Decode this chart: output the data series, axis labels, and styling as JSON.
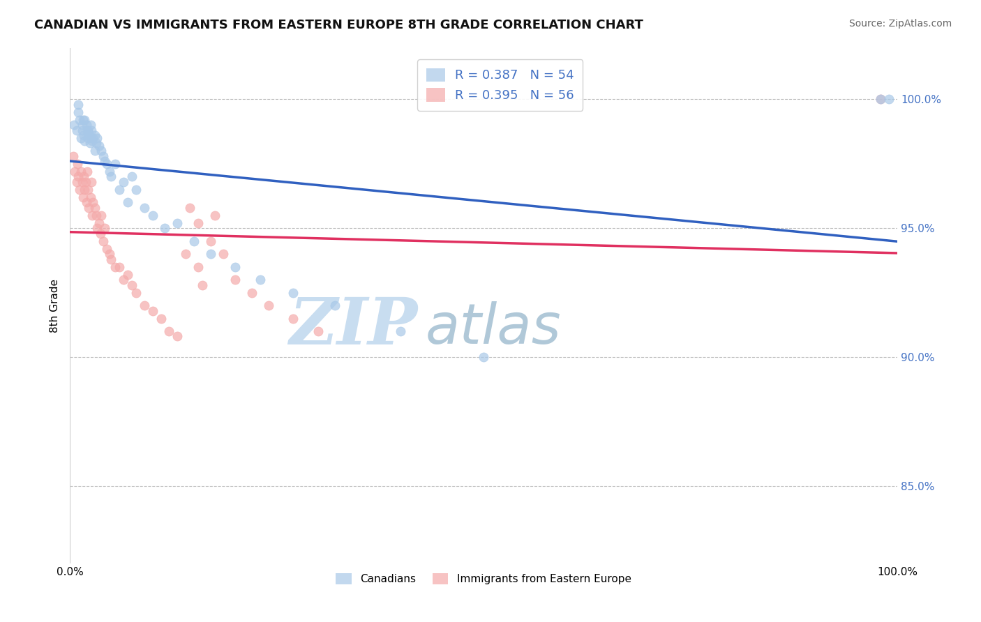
{
  "title": "CANADIAN VS IMMIGRANTS FROM EASTERN EUROPE 8TH GRADE CORRELATION CHART",
  "source_text": "Source: ZipAtlas.com",
  "ylabel": "8th Grade",
  "xlim": [
    0.0,
    1.0
  ],
  "ylim": [
    0.82,
    1.02
  ],
  "yticks": [
    0.85,
    0.9,
    0.95,
    1.0
  ],
  "ytick_labels": [
    "85.0%",
    "90.0%",
    "95.0%",
    "100.0%"
  ],
  "canadian_R": 0.387,
  "canadian_N": 54,
  "eastern_R": 0.395,
  "eastern_N": 56,
  "legend_labels": [
    "Canadians",
    "Immigrants from Eastern Europe"
  ],
  "blue_color": "#a8c8e8",
  "pink_color": "#f4aaaa",
  "blue_line_color": "#3060c0",
  "pink_line_color": "#e03060",
  "watermark_zip": "ZIP",
  "watermark_atlas": "atlas",
  "watermark_color_zip": "#c8ddf0",
  "watermark_color_atlas": "#b0c8d8",
  "background_color": "#ffffff",
  "canadian_x": [
    0.005,
    0.008,
    0.01,
    0.01,
    0.012,
    0.013,
    0.015,
    0.015,
    0.016,
    0.017,
    0.018,
    0.018,
    0.02,
    0.02,
    0.022,
    0.022,
    0.023,
    0.024,
    0.025,
    0.025,
    0.026,
    0.027,
    0.028,
    0.03,
    0.03,
    0.032,
    0.033,
    0.035,
    0.038,
    0.04,
    0.042,
    0.045,
    0.048,
    0.05,
    0.055,
    0.06,
    0.065,
    0.07,
    0.075,
    0.08,
    0.09,
    0.1,
    0.115,
    0.13,
    0.15,
    0.17,
    0.2,
    0.23,
    0.27,
    0.32,
    0.4,
    0.5,
    0.98,
    0.99
  ],
  "canadian_y": [
    0.99,
    0.988,
    0.995,
    0.998,
    0.992,
    0.985,
    0.99,
    0.988,
    0.992,
    0.986,
    0.984,
    0.992,
    0.99,
    0.988,
    0.988,
    0.985,
    0.987,
    0.983,
    0.99,
    0.985,
    0.988,
    0.984,
    0.985,
    0.986,
    0.98,
    0.983,
    0.985,
    0.982,
    0.98,
    0.978,
    0.976,
    0.975,
    0.972,
    0.97,
    0.975,
    0.965,
    0.968,
    0.96,
    0.97,
    0.965,
    0.958,
    0.955,
    0.95,
    0.952,
    0.945,
    0.94,
    0.935,
    0.93,
    0.925,
    0.92,
    0.91,
    0.9,
    1.0,
    1.0
  ],
  "eastern_x": [
    0.004,
    0.006,
    0.008,
    0.009,
    0.01,
    0.012,
    0.013,
    0.015,
    0.016,
    0.017,
    0.018,
    0.019,
    0.02,
    0.021,
    0.022,
    0.023,
    0.025,
    0.026,
    0.027,
    0.028,
    0.03,
    0.032,
    0.033,
    0.035,
    0.037,
    0.038,
    0.04,
    0.042,
    0.045,
    0.048,
    0.05,
    0.055,
    0.06,
    0.065,
    0.07,
    0.075,
    0.08,
    0.09,
    0.1,
    0.11,
    0.12,
    0.13,
    0.145,
    0.155,
    0.17,
    0.185,
    0.2,
    0.22,
    0.24,
    0.27,
    0.3,
    0.14,
    0.155,
    0.16,
    0.175,
    0.98
  ],
  "eastern_y": [
    0.978,
    0.972,
    0.968,
    0.975,
    0.97,
    0.965,
    0.972,
    0.968,
    0.962,
    0.97,
    0.965,
    0.968,
    0.96,
    0.972,
    0.965,
    0.958,
    0.962,
    0.968,
    0.955,
    0.96,
    0.958,
    0.955,
    0.95,
    0.952,
    0.948,
    0.955,
    0.945,
    0.95,
    0.942,
    0.94,
    0.938,
    0.935,
    0.935,
    0.93,
    0.932,
    0.928,
    0.925,
    0.92,
    0.918,
    0.915,
    0.91,
    0.908,
    0.958,
    0.952,
    0.945,
    0.94,
    0.93,
    0.925,
    0.92,
    0.915,
    0.91,
    0.94,
    0.935,
    0.928,
    0.955,
    1.0
  ],
  "title_fontsize": 13,
  "source_fontsize": 10,
  "tick_fontsize": 11,
  "ylabel_fontsize": 11
}
